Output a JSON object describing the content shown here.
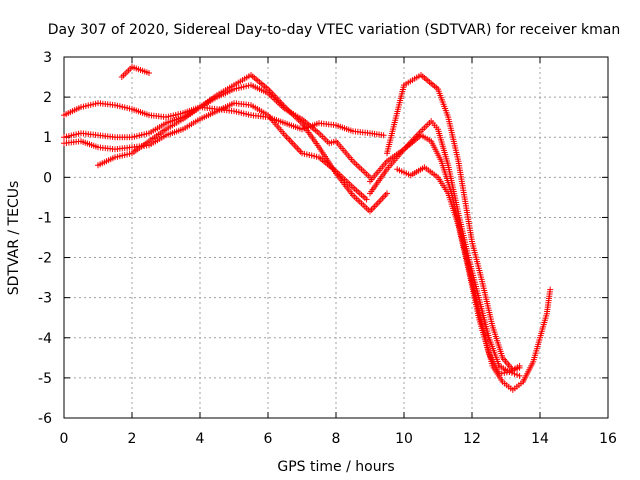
{
  "chart_data": {
    "type": "scatter",
    "title": "Day 307 of 2020, Sidereal Day-to-day VTEC variation (SDTVAR) for receiver kman",
    "xlabel": "GPS time / hours",
    "ylabel": "SDTVAR / TECUs",
    "xlim": [
      0,
      16
    ],
    "ylim": [
      -6,
      3
    ],
    "x_ticks": [
      "0",
      "2",
      "4",
      "6",
      "8",
      "10",
      "12",
      "14",
      "16"
    ],
    "y_ticks": [
      "3",
      "2",
      "1",
      "0",
      "-1",
      "-2",
      "-3",
      "-4",
      "-5",
      "-6"
    ],
    "grid": true,
    "marker": "+",
    "color": "#ff0000",
    "series": [
      {
        "x": [
          0.0,
          0.5,
          1.0,
          1.5,
          2.0,
          2.5,
          3.0,
          3.5,
          4.0,
          4.5,
          5.0,
          5.5,
          6.0,
          6.5,
          7.0,
          7.5,
          8.0,
          8.5,
          9.0,
          9.4
        ],
        "y": [
          1.55,
          1.75,
          1.85,
          1.8,
          1.7,
          1.55,
          1.5,
          1.6,
          1.75,
          1.7,
          1.65,
          1.55,
          1.5,
          1.35,
          1.2,
          1.35,
          1.3,
          1.15,
          1.1,
          1.05
        ]
      },
      {
        "x": [
          0.0,
          0.5,
          1.0,
          1.5,
          2.0,
          2.5,
          3.0,
          3.5,
          4.0,
          4.5,
          5.0,
          5.5,
          6.0,
          6.5,
          7.0,
          7.5,
          8.0,
          8.5,
          8.9
        ],
        "y": [
          0.85,
          0.9,
          0.75,
          0.7,
          0.75,
          0.8,
          1.05,
          1.2,
          1.45,
          1.65,
          1.85,
          1.8,
          1.55,
          1.05,
          0.6,
          0.5,
          0.15,
          -0.25,
          -0.55
        ]
      },
      {
        "x": [
          0.0,
          0.5,
          1.0,
          1.5,
          2.0,
          2.5,
          3.0,
          3.5,
          4.0,
          4.5,
          5.0,
          5.5,
          6.0,
          6.5,
          7.0,
          7.5,
          7.8,
          8.0,
          8.5,
          9.0
        ],
        "y": [
          1.0,
          1.1,
          1.05,
          1.0,
          1.0,
          1.1,
          1.35,
          1.5,
          1.75,
          2.0,
          2.2,
          2.3,
          2.1,
          1.7,
          1.45,
          1.1,
          0.85,
          0.9,
          0.4,
          0.0
        ]
      },
      {
        "x": [
          1.0,
          1.5,
          2.0,
          2.5,
          3.0,
          3.5,
          4.0,
          4.5,
          5.0,
          5.5,
          6.0,
          6.5,
          7.0,
          7.5,
          8.0,
          8.5,
          9.0,
          9.5
        ],
        "y": [
          0.3,
          0.5,
          0.6,
          0.9,
          1.2,
          1.45,
          1.75,
          2.05,
          2.3,
          2.55,
          2.2,
          1.75,
          1.35,
          0.75,
          0.1,
          -0.45,
          -0.85,
          -0.4
        ]
      },
      {
        "x": [
          1.7,
          2.0,
          2.5
        ],
        "y": [
          2.5,
          2.75,
          2.6
        ]
      },
      {
        "x": [
          9.5,
          10.0,
          10.5,
          11.0,
          11.3,
          11.6,
          11.8,
          12.0,
          12.3,
          12.6,
          12.9,
          13.2,
          13.4
        ],
        "y": [
          0.6,
          2.3,
          2.55,
          2.2,
          1.5,
          0.4,
          -0.6,
          -1.6,
          -2.6,
          -3.7,
          -4.5,
          -4.8,
          -4.7
        ]
      },
      {
        "x": [
          9.0,
          9.5,
          10.0,
          10.5,
          10.8,
          11.0,
          11.3,
          11.6,
          11.9,
          12.2,
          12.5,
          12.8,
          13.1,
          13.4
        ],
        "y": [
          -0.1,
          0.4,
          0.7,
          1.15,
          1.4,
          1.2,
          0.3,
          -0.9,
          -2.0,
          -3.0,
          -4.0,
          -4.7,
          -4.85,
          -4.95
        ]
      },
      {
        "x": [
          9.0,
          9.5,
          10.0,
          10.5,
          10.8,
          11.1,
          11.4,
          11.7,
          12.0,
          12.3,
          12.6,
          12.9,
          13.2,
          13.5,
          13.8,
          14.0,
          14.2,
          14.3
        ],
        "y": [
          -0.4,
          0.2,
          0.7,
          1.05,
          0.9,
          0.4,
          -0.4,
          -1.5,
          -2.6,
          -3.7,
          -4.7,
          -5.1,
          -5.3,
          -5.1,
          -4.6,
          -4.0,
          -3.4,
          -2.8
        ]
      },
      {
        "x": [
          9.8,
          10.2,
          10.6,
          11.0,
          11.3,
          11.6,
          11.9,
          12.2,
          12.5,
          12.8,
          13.1,
          13.4
        ],
        "y": [
          0.2,
          0.05,
          0.25,
          0.0,
          -0.4,
          -1.2,
          -2.3,
          -3.5,
          -4.4,
          -4.9,
          -4.85,
          -4.75
        ]
      }
    ]
  }
}
